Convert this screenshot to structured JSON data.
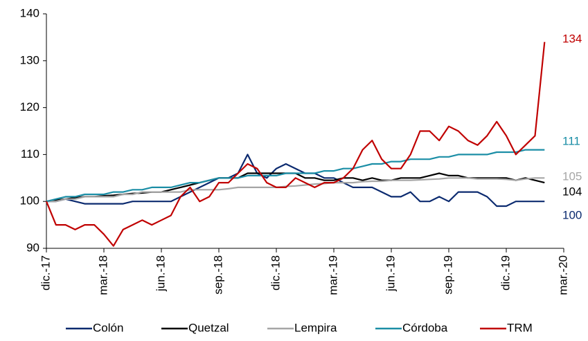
{
  "chart_data": {
    "type": "line",
    "categories": [
      "dic.-17",
      null,
      null,
      null,
      null,
      null,
      "mar.-18",
      null,
      null,
      null,
      null,
      null,
      "jun.-18",
      null,
      null,
      null,
      null,
      null,
      "sep.-18",
      null,
      null,
      null,
      null,
      null,
      "dic.-18",
      null,
      null,
      null,
      null,
      null,
      "mar.-19",
      null,
      null,
      null,
      null,
      null,
      "jun.-19",
      null,
      null,
      null,
      null,
      null,
      "sep.-19",
      null,
      null,
      null,
      null,
      null,
      "dic.-19",
      null,
      null,
      null,
      null,
      null,
      "mar.-20"
    ],
    "ylim": [
      90,
      140
    ],
    "yticks": [
      90,
      100,
      110,
      120,
      130,
      140
    ],
    "legend": "bottom",
    "series": [
      {
        "name": "Colón",
        "color": "#0b2a6f",
        "values": [
          100,
          100,
          100.5,
          100,
          99.5,
          99.5,
          99.5,
          99.5,
          99.5,
          100,
          100,
          100,
          100,
          100,
          101,
          102,
          103,
          104,
          105,
          105,
          106,
          110,
          106,
          105,
          107,
          108,
          107,
          106,
          106,
          105,
          105,
          104,
          103,
          103,
          103,
          102,
          101,
          101,
          102,
          100,
          100,
          101,
          100,
          102,
          102,
          102,
          101,
          99,
          99,
          100,
          100,
          100,
          100,
          null,
          null
        ]
      },
      {
        "name": "Quetzal",
        "color": "#000000",
        "values": [
          100,
          100.3,
          100.5,
          100.8,
          101,
          101,
          101.2,
          101.3,
          101.5,
          101.7,
          101.8,
          102,
          102,
          102.5,
          103,
          103.5,
          104,
          104.5,
          105,
          105,
          105,
          106,
          106,
          106,
          106,
          106,
          106,
          105,
          105,
          104.5,
          104.5,
          105,
          105,
          104.5,
          105,
          104.5,
          104.5,
          105,
          105,
          105,
          105.5,
          106,
          105.5,
          105.5,
          105,
          105,
          105,
          105,
          105,
          104.5,
          105,
          104.5,
          104,
          null,
          null
        ]
      },
      {
        "name": "Lempira",
        "color": "#a6a6a6",
        "values": [
          100,
          100,
          100.5,
          100.5,
          101,
          101,
          101,
          101,
          101.5,
          101.5,
          102,
          102,
          102,
          102,
          102,
          102.5,
          102.5,
          102.5,
          102.5,
          102.7,
          103,
          103,
          103,
          103,
          103,
          103.2,
          103.3,
          103.5,
          103.7,
          103.8,
          104,
          104,
          104,
          104.2,
          104.3,
          104.3,
          104.5,
          104.5,
          104.5,
          104.6,
          104.7,
          104.8,
          105,
          105,
          105,
          104.8,
          104.8,
          104.8,
          104.7,
          104.5,
          104.8,
          105,
          105,
          null,
          null
        ]
      },
      {
        "name": "Córdoba",
        "color": "#1b8ea6",
        "values": [
          100,
          100.5,
          101,
          101,
          101.5,
          101.5,
          101.5,
          102,
          102,
          102.5,
          102.5,
          103,
          103,
          103,
          103.5,
          104,
          104,
          104.5,
          105,
          105,
          105,
          105.5,
          105.5,
          105.5,
          105.5,
          106,
          106,
          106,
          106,
          106.5,
          106.5,
          107,
          107,
          107.5,
          108,
          108,
          108.5,
          108.5,
          109,
          109,
          109,
          109.5,
          109.5,
          110,
          110,
          110,
          110,
          110.5,
          110.5,
          110.5,
          111,
          111,
          111,
          null,
          null
        ]
      },
      {
        "name": "TRM",
        "color": "#c00000",
        "values": [
          100,
          95,
          95,
          94,
          95,
          95,
          93,
          90.5,
          94,
          95,
          96,
          95,
          96,
          97,
          101,
          103,
          100,
          101,
          104,
          104,
          106,
          108,
          107,
          104,
          103,
          103,
          105,
          104,
          103,
          104,
          104,
          105,
          107,
          111,
          113,
          109,
          107,
          107,
          110,
          115,
          115,
          113,
          116,
          115,
          113,
          112,
          114,
          117,
          114,
          110,
          112,
          114,
          134,
          null,
          null
        ]
      }
    ]
  }
}
